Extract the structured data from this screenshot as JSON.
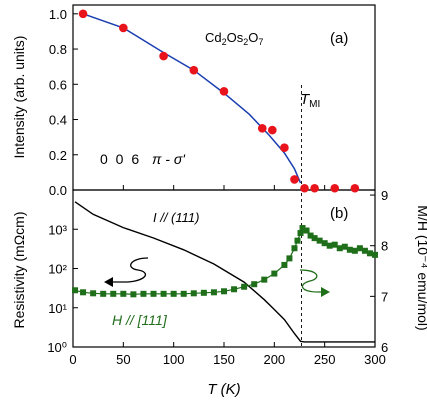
{
  "chart_data": [
    {
      "panel_label": "(a)",
      "type": "scatter",
      "annotation_compound": "Cd2Os2O7",
      "annotation_reflection": "0 0 6",
      "annotation_polarization": "π - σ'",
      "annotation_tmi": "T",
      "annotation_tmi_sub": "MI",
      "xlim": [
        0,
        300
      ],
      "ylim": [
        0,
        1.05
      ],
      "ylabel": "Intensity (arb. units)",
      "yticks": [
        "0.0",
        "0.2",
        "0.4",
        "0.6",
        "0.8",
        "1.0"
      ],
      "series": [
        {
          "color": "#e8131b",
          "marker": "circle",
          "x": [
            10,
            50,
            90,
            120,
            150,
            188,
            198,
            210,
            220,
            230,
            240,
            260,
            280
          ],
          "y": [
            1.0,
            0.92,
            0.76,
            0.68,
            0.56,
            0.35,
            0.34,
            0.24,
            0.06,
            0.01,
            0.01,
            0.01,
            0.01
          ]
        }
      ],
      "fit_curve": {
        "color": "#1b3fb0",
        "x": [
          10,
          50,
          90,
          120,
          150,
          175,
          195,
          210,
          220,
          226
        ],
        "y": [
          1.0,
          0.92,
          0.78,
          0.68,
          0.55,
          0.43,
          0.31,
          0.21,
          0.12,
          0.04
        ]
      },
      "transition_x": 227
    },
    {
      "panel_label": "(b)",
      "type": "line",
      "xlabel": "T (K)",
      "xlim": [
        0,
        300
      ],
      "xticks": [
        "0",
        "50",
        "100",
        "150",
        "200",
        "250",
        "300"
      ],
      "ylabel_left": "Resistivity (mΩcm)",
      "yscale_left": "log",
      "ylim_left": [
        1,
        10000
      ],
      "yticks_left": [
        "10⁰",
        "10¹",
        "10²",
        "10³"
      ],
      "ylabel_right": "M/H (10⁻⁴ emu/mol)",
      "ylim_right": [
        6,
        9.1
      ],
      "yticks_right": [
        "6",
        "7",
        "8",
        "9"
      ],
      "resistivity_label": "I // (111)",
      "magnetization_label": "H // [111]",
      "resistivity": {
        "color": "#000000",
        "x": [
          2,
          20,
          50,
          80,
          110,
          140,
          170,
          190,
          200,
          210,
          220,
          226,
          230,
          260,
          300
        ],
        "y": [
          5000,
          2400,
          1100,
          600,
          300,
          130,
          45,
          16,
          9,
          5,
          2.2,
          1.4,
          1.35,
          1.35,
          1.35
        ]
      },
      "magnetization": {
        "color": "#1f6e1a",
        "marker": "square",
        "x": [
          2,
          10,
          20,
          30,
          40,
          50,
          60,
          70,
          80,
          90,
          100,
          110,
          120,
          130,
          140,
          150,
          160,
          170,
          180,
          190,
          200,
          210,
          215,
          220,
          223,
          226,
          228,
          232,
          236,
          240,
          245,
          250,
          255,
          260,
          265,
          270,
          275,
          280,
          285,
          290,
          295,
          300
        ],
        "y": [
          7.12,
          7.08,
          7.06,
          7.05,
          7.05,
          7.05,
          7.04,
          7.05,
          7.05,
          7.05,
          7.05,
          7.05,
          7.06,
          7.07,
          7.08,
          7.1,
          7.14,
          7.19,
          7.24,
          7.33,
          7.45,
          7.62,
          7.75,
          7.95,
          8.1,
          8.25,
          8.35,
          8.3,
          8.2,
          8.15,
          8.1,
          8.05,
          8.0,
          8.02,
          7.95,
          7.98,
          7.92,
          7.9,
          7.95,
          7.9,
          7.85,
          7.82
        ]
      }
    }
  ]
}
